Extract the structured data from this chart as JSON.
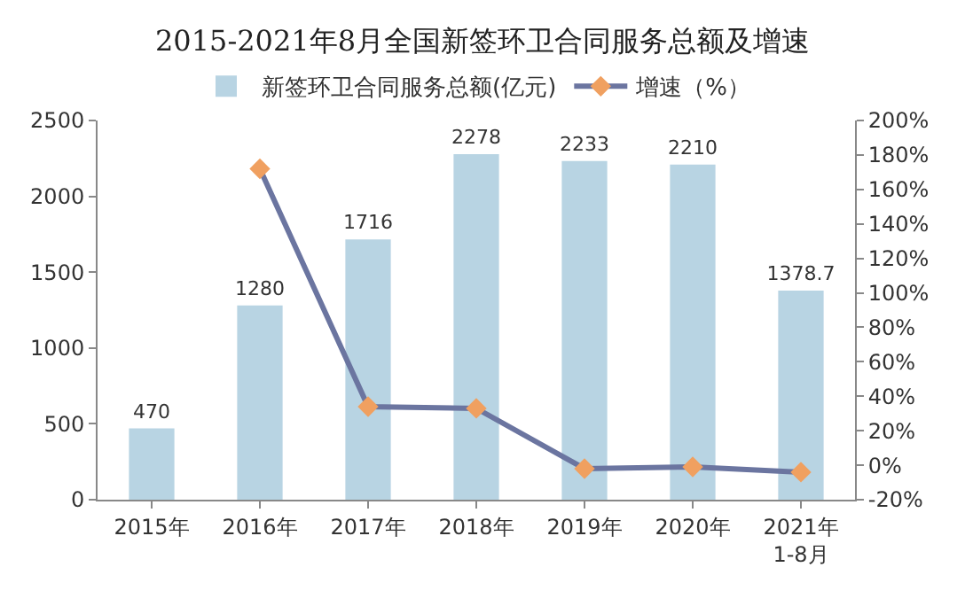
{
  "chart_data": {
    "type": "bar",
    "title": "2015-2021年8月全国新签环卫合同服务总额及增速",
    "categories": [
      "2015年",
      "2016年",
      "2017年",
      "2018年",
      "2019年",
      "2020年",
      "2021年\n1-8月"
    ],
    "series": [
      {
        "name": "新签环卫合同服务总额(亿元)",
        "color": "#b8d4e3",
        "values": [
          470,
          1280,
          1716,
          2278,
          2233,
          2210,
          1378.7
        ],
        "data_labels": true
      },
      {
        "name": "增速（%）",
        "type": "line",
        "axis": "y2",
        "color": "#6b75a0",
        "marker": "diamond",
        "colors": [
          "#f0a060",
          "#f0a060",
          "#f0a060",
          "#f0a060",
          "#f0a060",
          "#f0a060",
          "#f0a060"
        ],
        "values": [
          null,
          172,
          34,
          33,
          -2,
          -1,
          -4
        ]
      }
    ],
    "ylim": [
      0,
      2500
    ],
    "yticks": [
      0,
      500,
      1000,
      1500,
      2000,
      2500
    ],
    "y2lim": [
      -20,
      200
    ],
    "y2ticks": [
      {
        "value": -20,
        "label": "-20%"
      },
      {
        "value": 0,
        "label": "0%"
      },
      {
        "value": 20,
        "label": "20%"
      },
      {
        "value": 40,
        "label": "40%"
      },
      {
        "value": 60,
        "label": "60%"
      },
      {
        "value": 80,
        "label": "80%"
      },
      {
        "value": 100,
        "label": "100%"
      },
      {
        "value": 120,
        "label": "120%"
      },
      {
        "value": 140,
        "label": "140%"
      },
      {
        "value": 160,
        "label": "160%"
      },
      {
        "value": 180,
        "label": "180%"
      },
      {
        "value": 200,
        "label": "200%"
      }
    ],
    "grid": false,
    "legend": "top"
  }
}
